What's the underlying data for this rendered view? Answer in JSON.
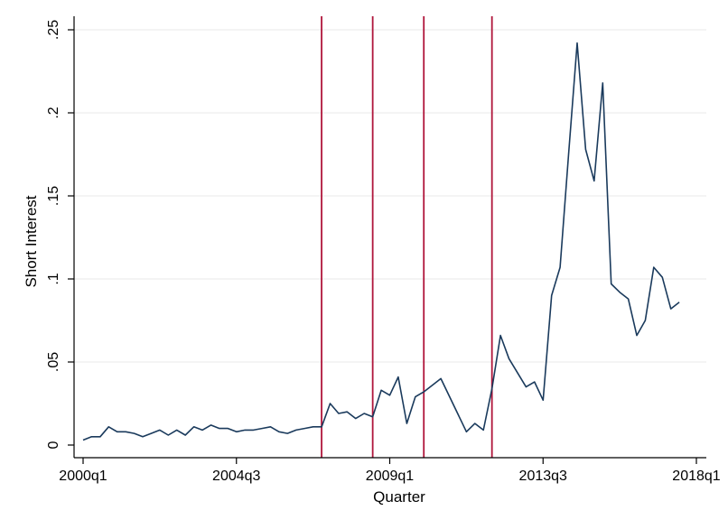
{
  "chart_data": {
    "type": "line",
    "xlabel": "Quarter",
    "ylabel": "Short Interest",
    "xlim": [
      0,
      72
    ],
    "ylim": [
      0,
      0.25
    ],
    "x_ticks": [
      {
        "x": 0,
        "label": "2000q1"
      },
      {
        "x": 18,
        "label": "2004q3"
      },
      {
        "x": 36,
        "label": "2009q1"
      },
      {
        "x": 54,
        "label": "2013q3"
      },
      {
        "x": 72,
        "label": "2018q1"
      }
    ],
    "y_ticks": [
      {
        "y": 0,
        "label": "0"
      },
      {
        "y": 0.05,
        "label": ".05"
      },
      {
        "y": 0.1,
        "label": ".1"
      },
      {
        "y": 0.15,
        "label": ".15"
      },
      {
        "y": 0.2,
        "label": ".2"
      },
      {
        "y": 0.25,
        "label": ".25"
      }
    ],
    "grid": true,
    "vertical_lines_x": [
      28,
      34,
      40,
      48
    ],
    "series": [
      {
        "color": "#1a3a5c",
        "points": [
          [
            0,
            0.003
          ],
          [
            1,
            0.005
          ],
          [
            2,
            0.005
          ],
          [
            3,
            0.011
          ],
          [
            4,
            0.008
          ],
          [
            5,
            0.008
          ],
          [
            6,
            0.007
          ],
          [
            7,
            0.005
          ],
          [
            8,
            0.007
          ],
          [
            9,
            0.009
          ],
          [
            10,
            0.006
          ],
          [
            11,
            0.009
          ],
          [
            12,
            0.006
          ],
          [
            13,
            0.011
          ],
          [
            14,
            0.009
          ],
          [
            15,
            0.012
          ],
          [
            16,
            0.01
          ],
          [
            17,
            0.01
          ],
          [
            18,
            0.008
          ],
          [
            19,
            0.009
          ],
          [
            20,
            0.009
          ],
          [
            21,
            0.01
          ],
          [
            22,
            0.011
          ],
          [
            23,
            0.008
          ],
          [
            24,
            0.007
          ],
          [
            25,
            0.009
          ],
          [
            26,
            0.01
          ],
          [
            27,
            0.011
          ],
          [
            28,
            0.011
          ],
          [
            29,
            0.025
          ],
          [
            30,
            0.019
          ],
          [
            31,
            0.02
          ],
          [
            32,
            0.016
          ],
          [
            33,
            0.019
          ],
          [
            34,
            0.017
          ],
          [
            35,
            0.033
          ],
          [
            36,
            0.03
          ],
          [
            37,
            0.041
          ],
          [
            38,
            0.013
          ],
          [
            39,
            0.029
          ],
          [
            40,
            0.032
          ],
          [
            42,
            0.04
          ],
          [
            45,
            0.008
          ],
          [
            46,
            0.013
          ],
          [
            47,
            0.009
          ],
          [
            48,
            0.034
          ],
          [
            49,
            0.066
          ],
          [
            50,
            0.052
          ],
          [
            52,
            0.035
          ],
          [
            53,
            0.038
          ],
          [
            54,
            0.027
          ],
          [
            55,
            0.09
          ],
          [
            56,
            0.107
          ],
          [
            57,
            0.175
          ],
          [
            58,
            0.242
          ],
          [
            59,
            0.178
          ],
          [
            60,
            0.159
          ],
          [
            61,
            0.218
          ],
          [
            62,
            0.097
          ],
          [
            63,
            0.092
          ],
          [
            64,
            0.088
          ],
          [
            65,
            0.066
          ],
          [
            66,
            0.075
          ],
          [
            67,
            0.107
          ],
          [
            68,
            0.101
          ],
          [
            69,
            0.082
          ],
          [
            70,
            0.086
          ]
        ]
      }
    ],
    "vertical_line_color": "#b0163b"
  }
}
